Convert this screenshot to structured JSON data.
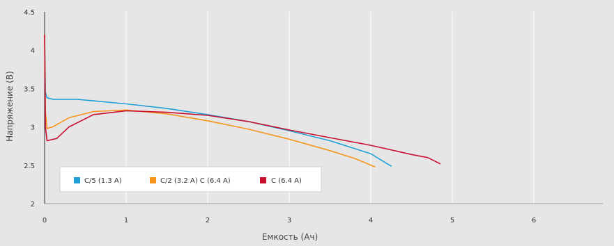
{
  "chart_data": {
    "type": "line",
    "title": "",
    "xlabel": "Емкость (Ач)",
    "ylabel": "Напряжение (В)",
    "xlim": [
      0,
      7
    ],
    "ylim": [
      2,
      4.5
    ],
    "x_ticks": [
      "0",
      "1",
      "2",
      "3",
      "4",
      "5",
      "6"
    ],
    "y_ticks": [
      "2",
      "2.5",
      "3",
      "3.5",
      "4",
      "4.5"
    ],
    "grid": "vertical",
    "legend_position": "bottom-left",
    "series": [
      {
        "name": "C/5 (1.3 A)",
        "color": "#1f9fd5",
        "points": [
          [
            0,
            4.2
          ],
          [
            0.01,
            3.45
          ],
          [
            0.03,
            3.38
          ],
          [
            0.1,
            3.36
          ],
          [
            0.4,
            3.36
          ],
          [
            1.0,
            3.3
          ],
          [
            1.5,
            3.24
          ],
          [
            2.0,
            3.16
          ],
          [
            2.5,
            3.07
          ],
          [
            3.0,
            2.95
          ],
          [
            3.5,
            2.82
          ],
          [
            4.0,
            2.65
          ],
          [
            4.2,
            2.52
          ],
          [
            4.25,
            2.49
          ]
        ]
      },
      {
        "name": "C/2 (3.2 A) C (6.4 A)",
        "color": "#f7941d",
        "points": [
          [
            0,
            4.2
          ],
          [
            0.01,
            3.2
          ],
          [
            0.03,
            2.98
          ],
          [
            0.1,
            3.0
          ],
          [
            0.3,
            3.12
          ],
          [
            0.6,
            3.2
          ],
          [
            1.0,
            3.22
          ],
          [
            1.5,
            3.17
          ],
          [
            2.0,
            3.08
          ],
          [
            2.5,
            2.97
          ],
          [
            3.0,
            2.84
          ],
          [
            3.5,
            2.69
          ],
          [
            3.8,
            2.59
          ],
          [
            4.05,
            2.48
          ]
        ]
      },
      {
        "name": "C (6.4 A)",
        "color": "#c8102e",
        "points": [
          [
            0,
            4.2
          ],
          [
            0.01,
            3.0
          ],
          [
            0.03,
            2.82
          ],
          [
            0.15,
            2.85
          ],
          [
            0.3,
            3.0
          ],
          [
            0.6,
            3.16
          ],
          [
            1.0,
            3.21
          ],
          [
            1.5,
            3.19
          ],
          [
            2.0,
            3.15
          ],
          [
            2.5,
            3.07
          ],
          [
            3.0,
            2.96
          ],
          [
            3.5,
            2.86
          ],
          [
            4.0,
            2.76
          ],
          [
            4.5,
            2.64
          ],
          [
            4.7,
            2.6
          ],
          [
            4.85,
            2.52
          ]
        ]
      }
    ]
  }
}
